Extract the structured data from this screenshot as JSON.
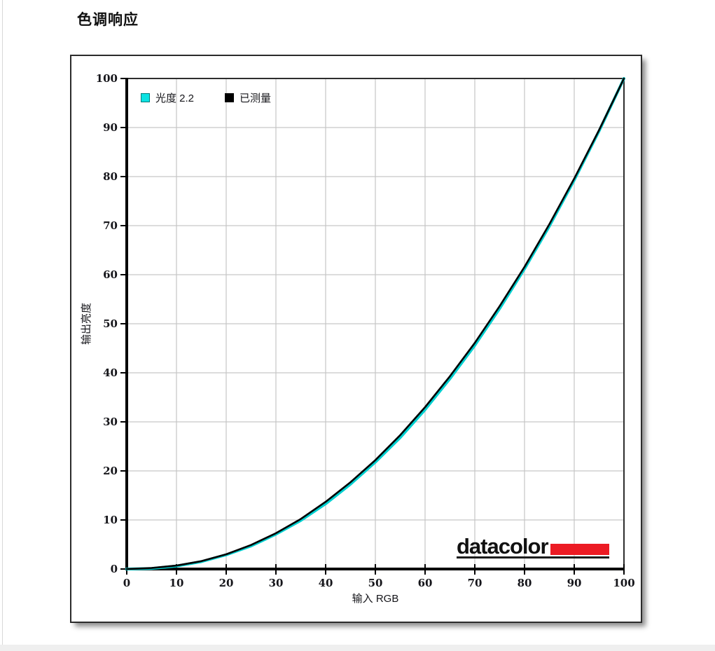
{
  "page": {
    "title": "色调响应"
  },
  "chart_data": {
    "type": "line",
    "title": "色调响应",
    "xlabel": "输入 RGB",
    "ylabel": "输出亮度",
    "xlim": [
      0,
      100
    ],
    "ylim": [
      0,
      100
    ],
    "xticks": [
      0,
      10,
      20,
      30,
      40,
      50,
      60,
      70,
      80,
      90,
      100
    ],
    "yticks": [
      0,
      10,
      20,
      30,
      40,
      50,
      60,
      70,
      80,
      90,
      100
    ],
    "grid": true,
    "legend_position": "top-left",
    "legend": [
      {
        "label": "光度 2.2",
        "color": "#0BE2E2",
        "border": "#007a7a"
      },
      {
        "label": "已测量",
        "color": "#000000",
        "border": "#000000"
      }
    ],
    "series": [
      {
        "name": "光度 2.2",
        "gamma": 2.2,
        "color": "#00CFCF",
        "width": 4,
        "points": [
          [
            0,
            0
          ],
          [
            5,
            0.1
          ],
          [
            10,
            0.6
          ],
          [
            15,
            1.5
          ],
          [
            20,
            2.9
          ],
          [
            25,
            4.7
          ],
          [
            30,
            7.1
          ],
          [
            35,
            9.9
          ],
          [
            40,
            13.3
          ],
          [
            45,
            17.3
          ],
          [
            50,
            21.8
          ],
          [
            55,
            26.8
          ],
          [
            60,
            32.5
          ],
          [
            65,
            38.8
          ],
          [
            70,
            45.6
          ],
          [
            75,
            53.1
          ],
          [
            80,
            61.2
          ],
          [
            85,
            69.9
          ],
          [
            90,
            79.3
          ],
          [
            95,
            89.3
          ],
          [
            100,
            100
          ]
        ]
      },
      {
        "name": "已测量",
        "gamma": 2.17,
        "color": "#000000",
        "width": 2.6,
        "points": [
          [
            0,
            0
          ],
          [
            5,
            0.2
          ],
          [
            10,
            0.7
          ],
          [
            15,
            1.6
          ],
          [
            20,
            3.0
          ],
          [
            25,
            4.9
          ],
          [
            30,
            7.3
          ],
          [
            35,
            10.2
          ],
          [
            40,
            13.7
          ],
          [
            45,
            17.7
          ],
          [
            50,
            22.2
          ],
          [
            55,
            27.3
          ],
          [
            60,
            33.0
          ],
          [
            65,
            39.3
          ],
          [
            70,
            46.1
          ],
          [
            75,
            53.6
          ],
          [
            80,
            61.6
          ],
          [
            85,
            70.3
          ],
          [
            90,
            79.6
          ],
          [
            95,
            89.5
          ],
          [
            100,
            100
          ]
        ]
      }
    ]
  },
  "logo": {
    "text": "datacolor"
  },
  "colors": {
    "grid": "#c6c6c6",
    "axis": "#000000",
    "frame": "#2e2e2e",
    "tick_text": "#15151a",
    "logo_red": "#EC1B24",
    "panel_border": "#2b2b2b",
    "bottom_strip": "#efefef",
    "page_bg": "#ffffff"
  }
}
